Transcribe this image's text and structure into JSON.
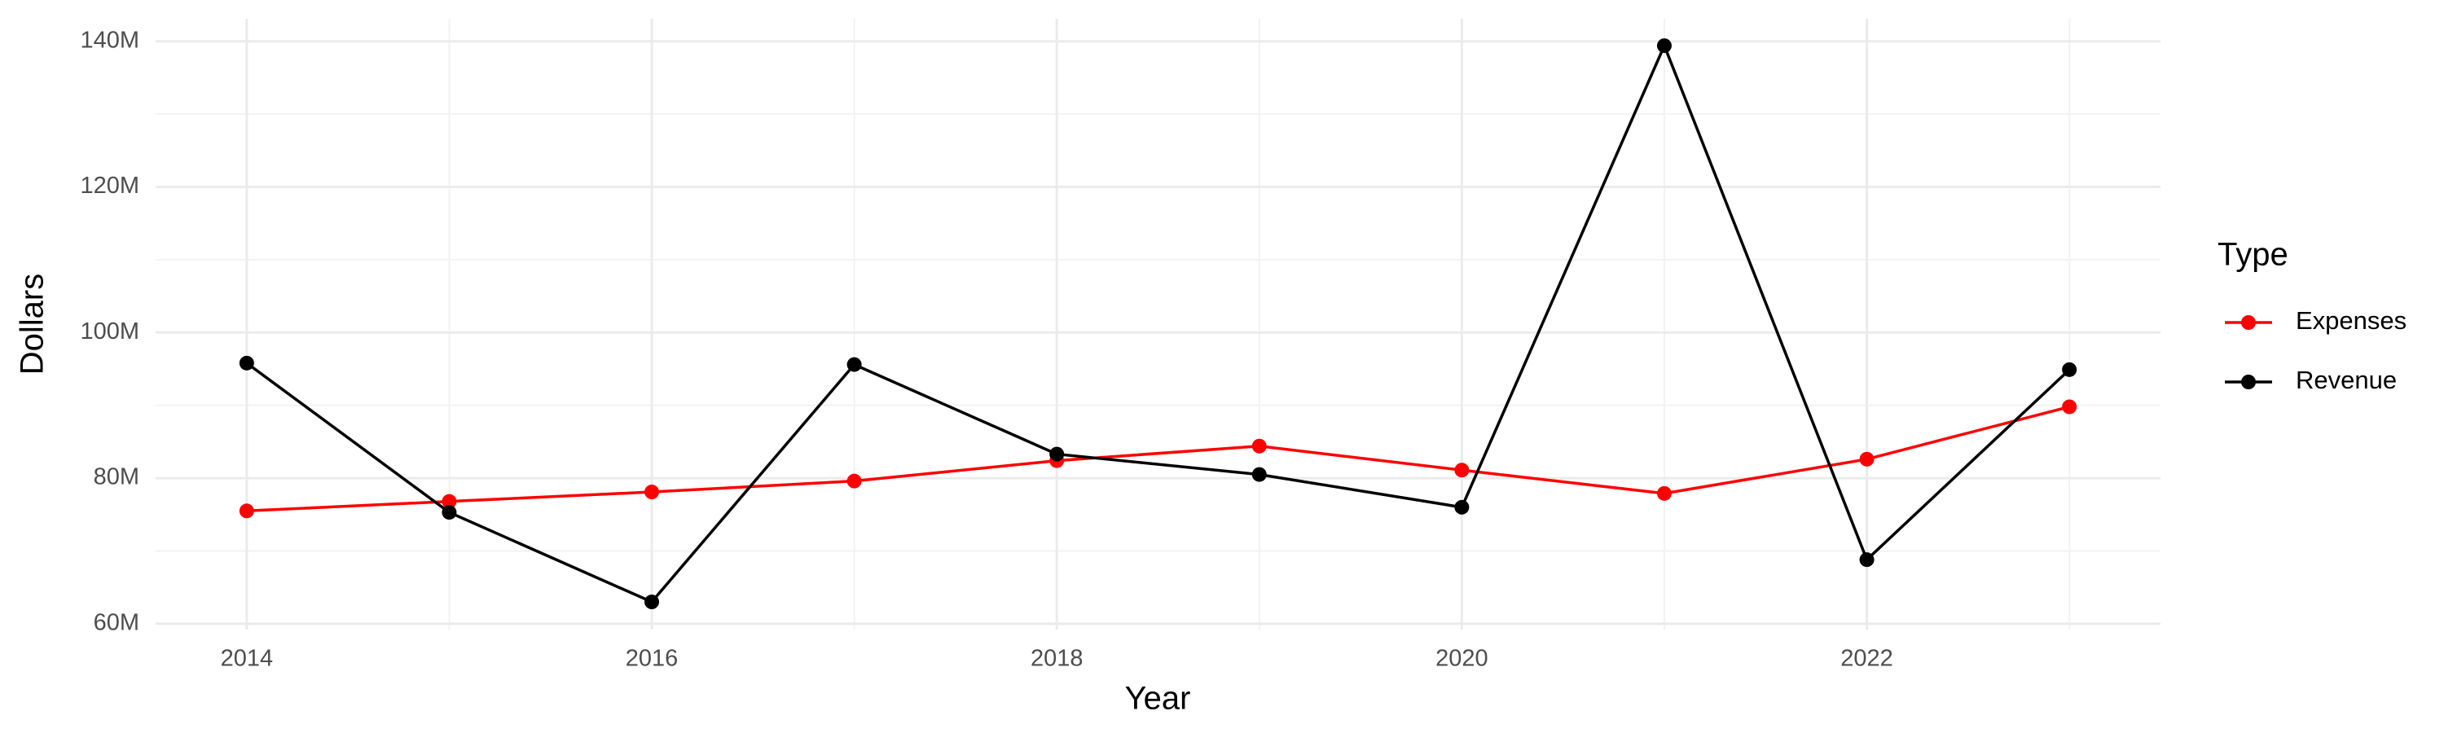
{
  "chart_data": {
    "type": "line",
    "x_label": "Year",
    "y_label": "Dollars",
    "x": [
      2014,
      2015,
      2016,
      2017,
      2018,
      2019,
      2020,
      2021,
      2022,
      2023
    ],
    "series": [
      {
        "name": "Expenses",
        "color": "#ff0000",
        "values": [
          75500000,
          76800000,
          78100000,
          79600000,
          82400000,
          84400000,
          81100000,
          77900000,
          82600000,
          89800000
        ]
      },
      {
        "name": "Revenue",
        "color": "#000000",
        "values": [
          95800000,
          75300000,
          63000000,
          95600000,
          83300000,
          80500000,
          76000000,
          139400000,
          68800000,
          94900000
        ]
      }
    ],
    "xlim": [
      2013.55,
      2023.45
    ],
    "xticks": [
      2014,
      2016,
      2018,
      2020,
      2022
    ],
    "ylim": [
      59200000,
      143100000
    ],
    "yticks": [
      {
        "value": 60000000,
        "label": "60M"
      },
      {
        "value": 80000000,
        "label": "80M"
      },
      {
        "value": 100000000,
        "label": "100M"
      },
      {
        "value": 120000000,
        "label": "120M"
      },
      {
        "value": 140000000,
        "label": "140M"
      }
    ],
    "grid": true,
    "legend_title": "Type",
    "legend_position": "right"
  }
}
